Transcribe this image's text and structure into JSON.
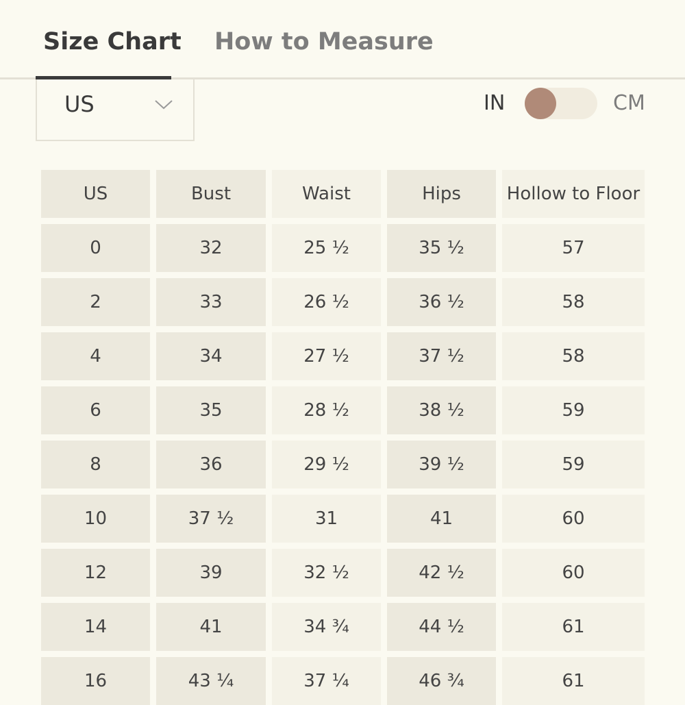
{
  "tabs": [
    "Size Chart",
    "How to Measure"
  ],
  "region_select": "US",
  "unit_toggle": {
    "left": "IN",
    "right": "CM"
  },
  "table": {
    "header": [
      "US",
      "Bust",
      "Waist",
      "Hips",
      "Hollow to Floor"
    ],
    "rows": [
      [
        "0",
        "32",
        "25 ½",
        "35 ½",
        "57"
      ],
      [
        "2",
        "33",
        "26 ½",
        "36 ½",
        "58"
      ],
      [
        "4",
        "34",
        "27 ½",
        "37 ½",
        "58"
      ],
      [
        "6",
        "35",
        "28 ½",
        "38 ½",
        "59"
      ],
      [
        "8",
        "36",
        "29 ½",
        "39 ½",
        "59"
      ],
      [
        "10",
        "37 ½",
        "31",
        "41",
        "60"
      ],
      [
        "12",
        "39",
        "32 ½",
        "42 ½",
        "60"
      ],
      [
        "14",
        "41",
        "34 ¾",
        "44 ½",
        "61"
      ],
      [
        "16",
        "43 ¼",
        "37 ¼",
        "46 ¾",
        "61"
      ]
    ]
  }
}
